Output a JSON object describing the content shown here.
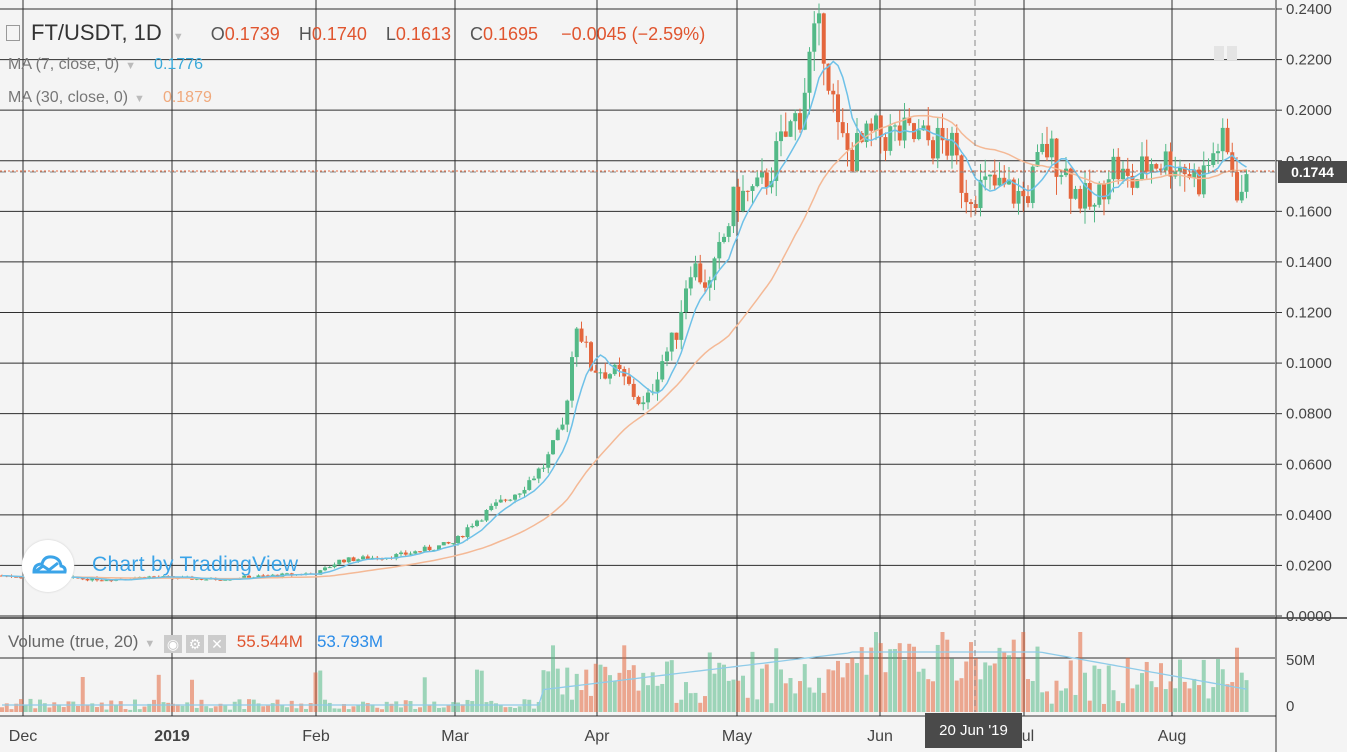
{
  "header": {
    "symbol": "FT/USDT, 1D",
    "o_label": "O",
    "o": "0.1739",
    "h_label": "H",
    "h": "0.1740",
    "l_label": "L",
    "l": "0.1613",
    "c_label": "C",
    "c": "0.1695",
    "change": "−0.0045 (−2.59%)"
  },
  "indicators": {
    "ma7_label": "MA (7, close, 0)",
    "ma7_value": "0.1776",
    "ma30_label": "MA (30, close, 0)",
    "ma30_value": "0.1879"
  },
  "volume": {
    "label": "Volume (true, 20)",
    "value1": "55.544M",
    "value2": "53.793M"
  },
  "branding": {
    "text": "Chart by TradingView"
  },
  "price_marker": "0.1744",
  "crosshair_label": "20 Jun '19",
  "colors": {
    "up": "#53b987",
    "down": "#e4663d",
    "ma7": "#6ec1e8",
    "ma30": "#f4b996",
    "grid": "#2e2e2e",
    "background": "#f4f4f4"
  },
  "chart_data": {
    "type": "candlestick",
    "title": "FT/USDT, 1D",
    "x_ticks": [
      "Dec",
      "2019",
      "Feb",
      "Mar",
      "Apr",
      "May",
      "Jun",
      "Jul",
      "Aug"
    ],
    "y_ticks": [
      "0.2400",
      "0.2200",
      "0.2000",
      "0.1800",
      "0.1600",
      "0.1400",
      "0.1200",
      "0.1000",
      "0.0800",
      "0.0600",
      "0.0400",
      "0.0200",
      "0.0000"
    ],
    "ylim": [
      0,
      0.24
    ],
    "volume_ticks": [
      "50M",
      "0"
    ],
    "series": [
      {
        "name": "MA (7, close, 0)",
        "value": 0.1776
      },
      {
        "name": "MA (30, close, 0)",
        "value": 0.1879
      }
    ],
    "closes_approx": [
      [
        "Dec",
        0.016
      ],
      [
        "2019",
        0.015
      ],
      [
        "Feb",
        0.017
      ],
      [
        "Mar",
        0.029
      ],
      [
        "Mar 25",
        0.075
      ],
      [
        "Mar 28",
        0.118
      ],
      [
        "Apr",
        0.095
      ],
      [
        "Apr 12",
        0.082
      ],
      [
        "Apr 25",
        0.14
      ],
      [
        "May",
        0.163
      ],
      [
        "May 10",
        0.185
      ],
      [
        "May 17",
        0.228
      ],
      [
        "May 22",
        0.19
      ],
      [
        "Jun",
        0.19
      ],
      [
        "Jun 15",
        0.178
      ],
      [
        "Jun 20",
        0.17
      ],
      [
        "Jul",
        0.165
      ],
      [
        "Jul 15",
        0.16
      ],
      [
        "Aug",
        0.175
      ],
      [
        "Aug 10",
        0.188
      ],
      [
        "Aug 15",
        0.1695
      ]
    ]
  }
}
